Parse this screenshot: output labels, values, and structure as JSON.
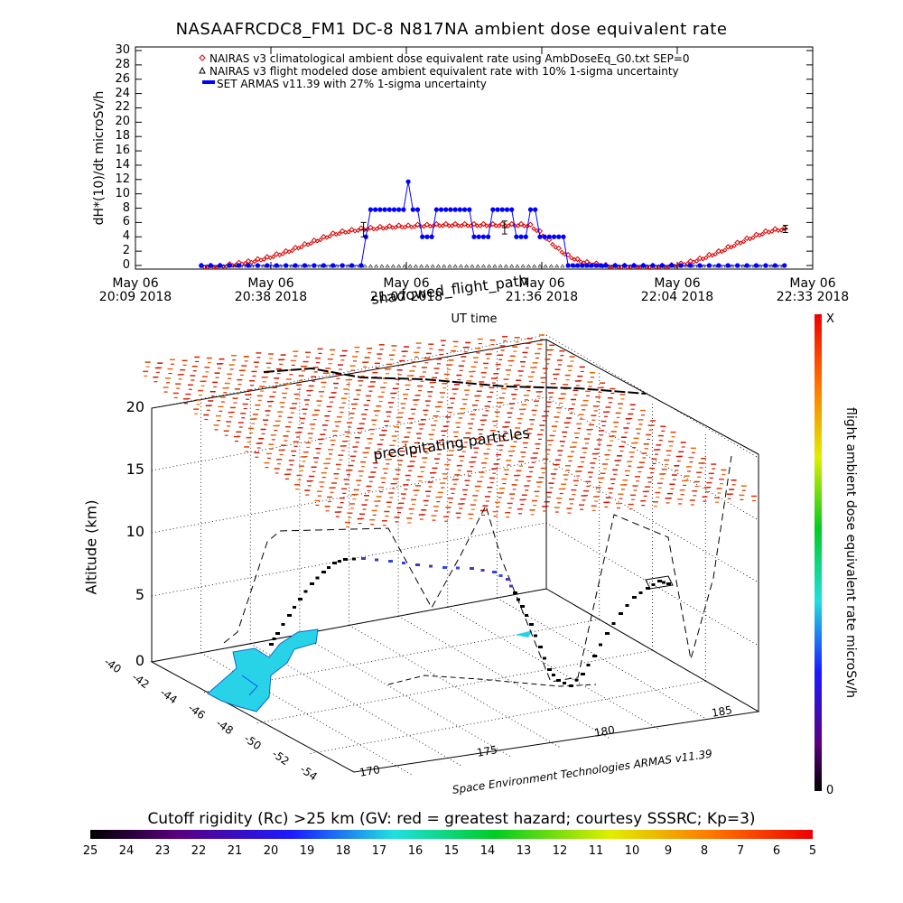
{
  "title": "NASAAFRCDC8_FM1 DC-8    N817NA ambient dose equivalent rate",
  "colors": {
    "nairas_climatological": "#dd0000",
    "armas": "#0000ff",
    "frame": "#000000"
  },
  "chart_data": [
    {
      "type": "line",
      "title": "NASAAFRCDC8_FM1 DC-8    N817NA ambient dose equivalent rate",
      "xlabel": "UT time",
      "ylabel": "dH*(10)/dt microSv/h",
      "ylim": [
        0,
        30
      ],
      "yticks": [
        "0",
        "2",
        "4",
        "6",
        "8",
        "10",
        "12",
        "14",
        "16",
        "18",
        "20",
        "22",
        "24",
        "26",
        "28",
        "30"
      ],
      "xticks": [
        {
          "l1": "May 06",
          "l2": "20:09 2018"
        },
        {
          "l1": "May 06",
          "l2": "20:38 2018"
        },
        {
          "l1": "May 06",
          "l2": "21:07 2018"
        },
        {
          "l1": "May 06",
          "l2": "21:36 2018"
        },
        {
          "l1": "May 06",
          "l2": "22:04 2018"
        },
        {
          "l1": "May 06",
          "l2": "22:33 2018"
        }
      ],
      "xlim_minutes_after_2009UT": [
        0,
        144
      ],
      "legend": [
        "NAIRAS v3 climatological ambient dose equivalent rate using AmbDoseEq_G0.txt SEP=0",
        "NAIRAS v3 flight modeled dose ambient equivalent rate with 10% 1-sigma uncertainty",
        "SET ARMAS v11.39 with 27% 1-sigma uncertainty"
      ],
      "legend_position": "top",
      "series": [
        {
          "name": "NAIRAS v3 climatological ambient dose equivalent rate using AmbDoseEq_G0.txt SEP=0",
          "marker": "diamond",
          "x": [
            14,
            16,
            18,
            20,
            22,
            24,
            26,
            28,
            30,
            32,
            34,
            36,
            38,
            40,
            42,
            44,
            46,
            48,
            50,
            52,
            54,
            56,
            58,
            60,
            62,
            64,
            66,
            68,
            70,
            72,
            74,
            76,
            78,
            80,
            82,
            84,
            86,
            88,
            90,
            92,
            94,
            96,
            98,
            100,
            102,
            104,
            106,
            108,
            110,
            112,
            114,
            116,
            118,
            120,
            122,
            124,
            126,
            128,
            130,
            132,
            134,
            136,
            138
          ],
          "values": [
            0,
            0,
            0,
            0.2,
            0.4,
            0.6,
            0.9,
            1.2,
            1.6,
            2.0,
            2.5,
            3.0,
            3.5,
            4.0,
            4.5,
            4.8,
            5.0,
            5.2,
            5.3,
            5.4,
            5.5,
            5.6,
            5.6,
            5.7,
            5.7,
            5.8,
            5.8,
            5.8,
            5.8,
            5.8,
            5.8,
            5.8,
            5.8,
            5.8,
            5.8,
            5.7,
            4.8,
            3.6,
            2.4,
            1.5,
            0.9,
            0.5,
            0.3,
            0.1,
            0,
            0,
            0,
            0,
            0,
            0,
            0.1,
            0.3,
            0.6,
            1.0,
            1.5,
            2.0,
            2.6,
            3.2,
            3.8,
            4.3,
            4.8,
            5.1,
            5.2
          ]
        },
        {
          "name": "NAIRAS v3 flight modeled dose ambient equivalent rate with 10% 1-sigma uncertainty",
          "marker": "triangle",
          "x": [
            14,
            22,
            30,
            38,
            46,
            54,
            62,
            70,
            78,
            86,
            94,
            102,
            110,
            118,
            126,
            134,
            138
          ],
          "values": [
            0,
            0,
            0,
            0,
            0,
            0,
            0,
            0,
            0,
            0,
            0,
            0,
            0,
            0,
            0,
            0,
            0
          ],
          "errorbars": [
            {
              "x": 48.5,
              "y": 5.0,
              "err": 1.0
            },
            {
              "x": 78.5,
              "y": 5.3,
              "err": 0.9
            },
            {
              "x": 138.2,
              "y": 5.1,
              "err": 0.5
            }
          ]
        },
        {
          "name": "SET ARMAS v11.39 with 27% 1-sigma uncertainty",
          "marker": "filled-circle",
          "x": [
            14,
            16,
            18,
            20,
            22,
            24,
            26,
            28,
            30,
            32,
            34,
            36,
            38,
            40,
            42,
            44,
            46,
            48,
            49,
            50,
            51,
            52,
            53,
            54,
            55,
            56,
            57,
            58,
            59,
            60,
            61,
            62,
            63,
            64,
            65,
            66,
            67,
            68,
            69,
            70,
            71,
            72,
            73,
            74,
            75,
            76,
            77,
            78,
            79,
            80,
            81,
            82,
            83,
            84,
            85,
            86,
            87,
            88,
            89,
            90,
            91,
            92,
            93,
            94,
            95,
            96,
            97,
            98,
            99,
            100,
            102,
            104,
            106,
            108,
            110,
            112,
            114,
            116,
            118,
            120,
            122,
            124,
            126,
            128,
            130,
            132,
            134,
            136,
            138
          ],
          "values": [
            0,
            0,
            0,
            0,
            0,
            0,
            0,
            0,
            0,
            0,
            0,
            0,
            0,
            0,
            0,
            0,
            0,
            0,
            4,
            7.8,
            7.8,
            7.8,
            7.8,
            7.8,
            7.8,
            7.8,
            7.8,
            11.7,
            7.8,
            7.8,
            4,
            4,
            4,
            7.8,
            7.8,
            7.8,
            7.8,
            7.8,
            7.8,
            7.8,
            7.8,
            4,
            4,
            4,
            4,
            7.8,
            7.8,
            7.8,
            7.8,
            7.8,
            4,
            4,
            4,
            7.8,
            7.8,
            4,
            4,
            4,
            4,
            4,
            4,
            0,
            0,
            0,
            0,
            0,
            0,
            0,
            0,
            0,
            0,
            0,
            0,
            0,
            0,
            0,
            0,
            0,
            0,
            0,
            0,
            0,
            0,
            0,
            0,
            0,
            0,
            0,
            0
          ]
        }
      ]
    },
    {
      "type": "scatter",
      "subtype": "3d-flight-track",
      "zlabel": "Altitude (km)",
      "zticks": [
        "0",
        "5",
        "10",
        "15",
        "20"
      ],
      "lat_ticks": [
        "-40",
        "-42",
        "-44",
        "-46",
        "-48",
        "-50",
        "-52",
        "-54"
      ],
      "lon_ticks": [
        "170",
        "175",
        "180",
        "185"
      ],
      "annotations": [
        "shadowed_flight_path",
        "precipitating particles",
        "Space Environment Technologies ARMAS v11.39"
      ],
      "colorbar_label": "flight ambient dose equivalent rate microSv/h",
      "colorbar_range": [
        "0",
        "X"
      ],
      "bottom_title": "Cutoff rigidity (Rc) >25 km (GV: red = greatest hazard; courtesy SSSRC; Kp=3)",
      "bottom_colorbar_ticks": [
        "25",
        "24",
        "23",
        "22",
        "21",
        "20",
        "19",
        "18",
        "17",
        "16",
        "15",
        "14",
        "13",
        "12",
        "11",
        "10",
        "9",
        "8",
        "7",
        "6",
        "5"
      ]
    }
  ]
}
